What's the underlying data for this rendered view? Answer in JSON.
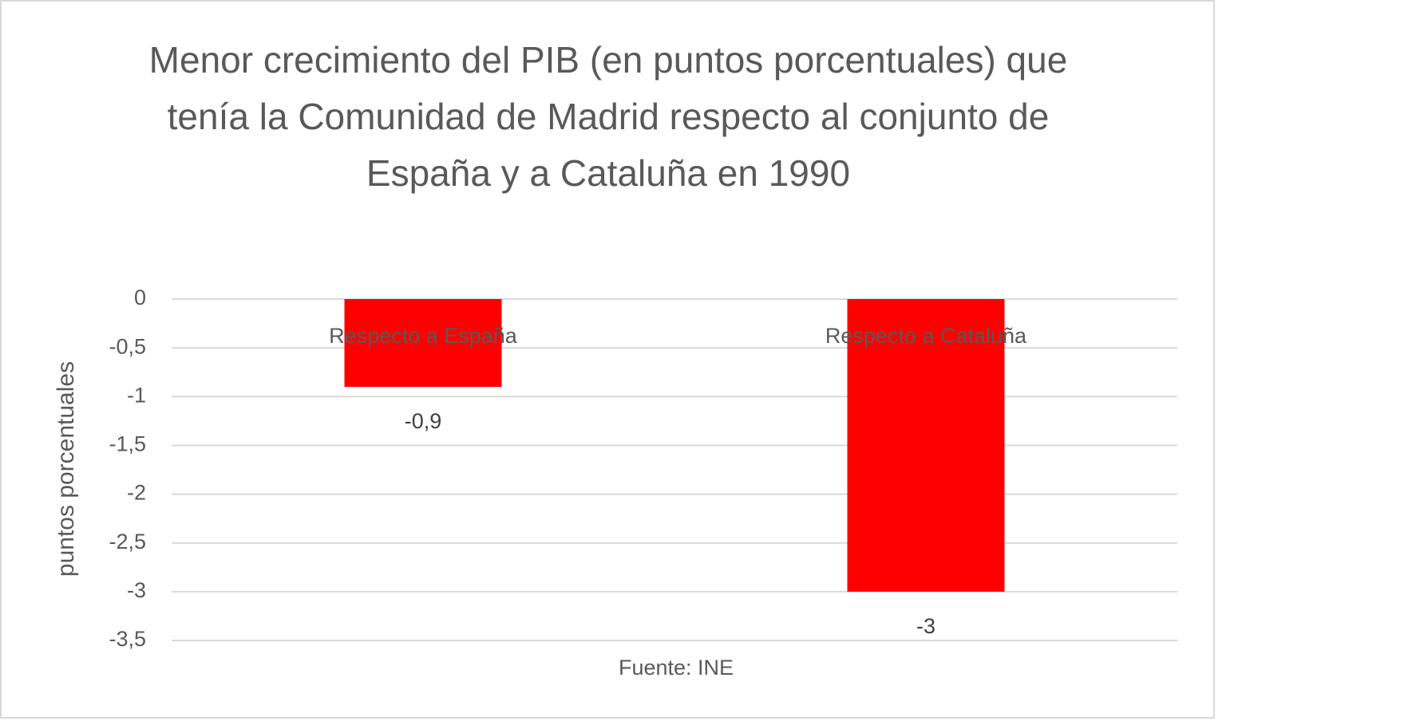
{
  "chart_data": {
    "type": "bar",
    "title": "Menor crecimiento del PIB (en puntos porcentuales) que tenía la Comunidad de Madrid respecto al conjunto de España y a Cataluña en 1990",
    "x_label": "Fuente: INE",
    "y_label": "puntos porcentuales",
    "categories": [
      "Respecto a España",
      "Respecto a Cataluña"
    ],
    "values": [
      -0.9,
      -3
    ],
    "value_labels": [
      "-0,9",
      "-3"
    ],
    "color": "#ff0000",
    "ylim": [
      -3.5,
      0
    ],
    "yticks": [
      0,
      {
        "value": -0.5,
        "label": "-0,5"
      },
      -1,
      {
        "value": -1.5,
        "label": "-1,5"
      },
      -2,
      {
        "value": -2.5,
        "label": "-2,5"
      },
      -3,
      {
        "value": -3.5,
        "label": "-3,5"
      }
    ],
    "grid": true
  }
}
